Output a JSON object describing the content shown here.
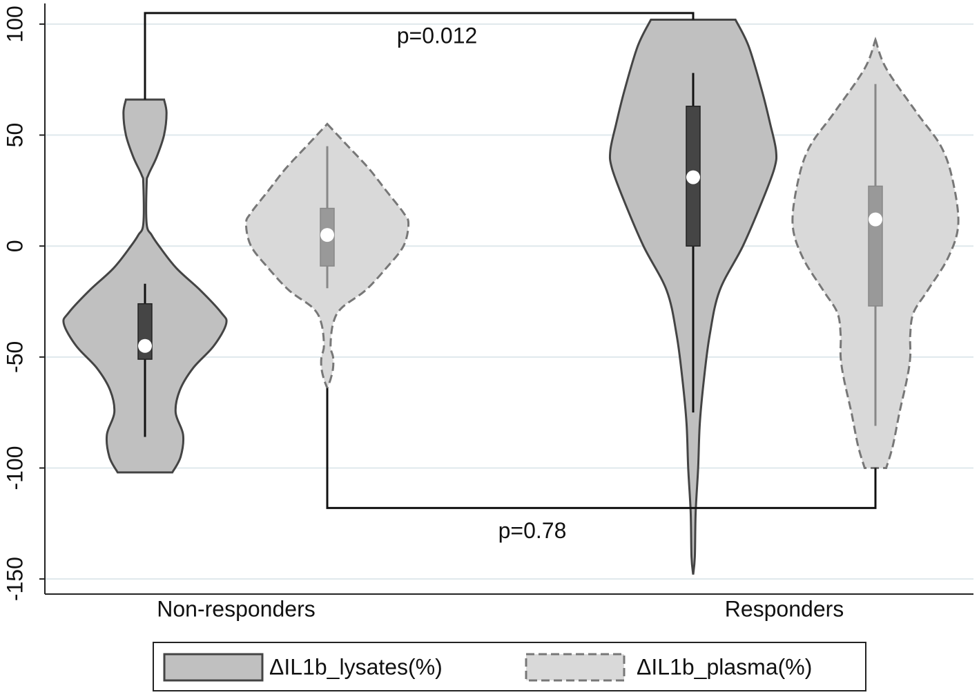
{
  "chart_data": {
    "type": "violin",
    "categories": [
      "Non-responders",
      "Responders"
    ],
    "series": [
      {
        "name": "ΔIL1b_lysates(%)",
        "color": "#c0c0c0",
        "line_color": "#444444",
        "dashed": false,
        "box_color": "#454545",
        "whisker_color": "#111111",
        "values": [
          {
            "violin_y": [
              66,
              60,
              50,
              40,
              32,
              28,
              10,
              5,
              0,
              -10,
              -20,
              -30,
              -35,
              -45,
              -55,
              -65,
              -75,
              -85,
              -95,
              -102
            ],
            "density": [
              0.23,
              0.26,
              0.23,
              0.14,
              0.04,
              0.02,
              0.02,
              0.08,
              0.17,
              0.38,
              0.67,
              0.92,
              0.98,
              0.83,
              0.58,
              0.42,
              0.37,
              0.46,
              0.43,
              0.33
            ],
            "whisker_low": -86,
            "q1": -51,
            "median": -45,
            "q3": -26,
            "whisker_high": -17
          },
          {
            "violin_y": [
              102,
              90,
              70,
              55,
              43,
              35,
              20,
              0,
              -20,
              -40,
              -60,
              -80,
              -100,
              -120,
              -140,
              -148
            ],
            "density": [
              0.51,
              0.67,
              0.83,
              0.93,
              1,
              0.98,
              0.83,
              0.6,
              0.32,
              0.2,
              0.13,
              0.08,
              0.06,
              0.03,
              0.02,
              0
            ],
            "whisker_low": -75,
            "q1": 0,
            "median": 31,
            "q3": 63,
            "whisker_high": 78
          }
        ]
      },
      {
        "name": "ΔIL1b_plasma(%)",
        "color": "#d9d9d9",
        "line_color": "#777777",
        "dashed": true,
        "box_color": "#999999",
        "whisker_color": "#888888",
        "values": [
          {
            "violin_y": [
              55,
              45,
              35,
              25,
              15,
              10,
              0,
              -10,
              -20,
              -28,
              -35,
              -45,
              -50,
              -55,
              -60,
              -64
            ],
            "density": [
              0,
              0.25,
              0.5,
              0.71,
              0.92,
              0.98,
              0.92,
              0.71,
              0.46,
              0.17,
              0.07,
              0.04,
              0.07,
              0.07,
              0.04,
              0
            ],
            "whisker_low": -19,
            "q1": -9,
            "median": 5,
            "q3": 17,
            "whisker_high": 45
          },
          {
            "violin_y": [
              93,
              80,
              60,
              45,
              30,
              10,
              -5,
              -20,
              -30,
              -40,
              -50,
              -60,
              -75,
              -90,
              -100
            ],
            "density": [
              0,
              0.13,
              0.5,
              0.79,
              0.93,
              1,
              0.88,
              0.63,
              0.46,
              0.42,
              0.42,
              0.38,
              0.29,
              0.21,
              0.13
            ],
            "whisker_low": -81,
            "q1": -27,
            "median": 12,
            "q3": 27,
            "whisker_high": 73
          }
        ]
      }
    ],
    "ylim": [
      -156.8,
      109.3
    ],
    "yticks": [
      -150,
      -100,
      -50,
      0,
      50,
      100
    ],
    "grid": true,
    "legend": "bottom",
    "annotations": [
      {
        "text": "p=0.012",
        "y": 105,
        "series": 0
      },
      {
        "text": "p=0.78",
        "y": -118,
        "series": 1
      }
    ]
  }
}
